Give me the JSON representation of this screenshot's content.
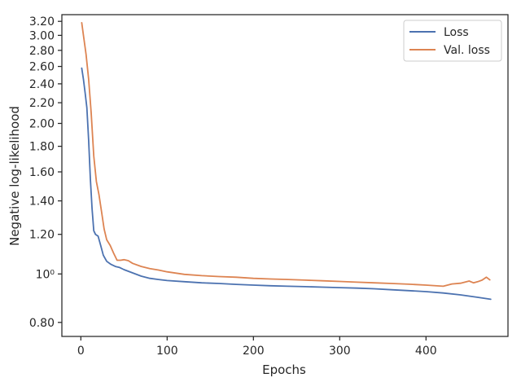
{
  "chart_data": {
    "type": "line",
    "title": "",
    "xlabel": "Epochs",
    "ylabel": "Negative log-likelihood",
    "xlim": [
      -22,
      495
    ],
    "ylim": [
      0.75,
      3.3
    ],
    "y_scale": "log",
    "grid": false,
    "legend_position": "top-right",
    "x_ticks": [
      {
        "value": 0,
        "label": "0"
      },
      {
        "value": 100,
        "label": "100"
      },
      {
        "value": 200,
        "label": "200"
      },
      {
        "value": 300,
        "label": "300"
      },
      {
        "value": 400,
        "label": "400"
      }
    ],
    "y_ticks": [
      {
        "value": 0.8,
        "label": "0.80"
      },
      {
        "value": 1.0,
        "label": "10⁰"
      },
      {
        "value": 1.2,
        "label": "1.20"
      },
      {
        "value": 1.4,
        "label": "1.40"
      },
      {
        "value": 1.6,
        "label": "1.60"
      },
      {
        "value": 1.8,
        "label": "1.80"
      },
      {
        "value": 2.0,
        "label": "2.00"
      },
      {
        "value": 2.2,
        "label": "2.20"
      },
      {
        "value": 2.4,
        "label": "2.40"
      },
      {
        "value": 2.6,
        "label": "2.60"
      },
      {
        "value": 2.8,
        "label": "2.80"
      },
      {
        "value": 3.0,
        "label": "3.00"
      },
      {
        "value": 3.2,
        "label": "3.20"
      }
    ],
    "series": [
      {
        "name": "Loss",
        "color": "#4c72b0",
        "x": [
          1,
          3,
          5,
          7,
          9,
          11,
          13,
          15,
          17,
          20,
          23,
          26,
          30,
          35,
          40,
          45,
          50,
          60,
          70,
          80,
          90,
          100,
          120,
          140,
          160,
          180,
          200,
          220,
          240,
          260,
          280,
          300,
          320,
          340,
          360,
          380,
          400,
          420,
          440,
          460,
          475
        ],
        "y": [
          2.58,
          2.45,
          2.3,
          2.15,
          1.85,
          1.55,
          1.35,
          1.22,
          1.2,
          1.19,
          1.14,
          1.09,
          1.06,
          1.045,
          1.035,
          1.03,
          1.02,
          1.005,
          0.99,
          0.98,
          0.975,
          0.97,
          0.965,
          0.96,
          0.957,
          0.953,
          0.95,
          0.947,
          0.945,
          0.943,
          0.941,
          0.939,
          0.937,
          0.934,
          0.93,
          0.926,
          0.922,
          0.916,
          0.908,
          0.898,
          0.89
        ]
      },
      {
        "name": "Val. loss",
        "color": "#dd8452",
        "x": [
          1,
          3,
          6,
          9,
          12,
          15,
          18,
          21,
          24,
          27,
          30,
          34,
          38,
          42,
          46,
          50,
          55,
          60,
          70,
          80,
          90,
          100,
          120,
          140,
          160,
          180,
          200,
          220,
          240,
          260,
          280,
          300,
          320,
          340,
          360,
          380,
          400,
          420,
          430,
          440,
          450,
          455,
          460,
          465,
          470,
          474
        ],
        "y": [
          3.18,
          3.0,
          2.75,
          2.45,
          2.1,
          1.72,
          1.53,
          1.44,
          1.33,
          1.23,
          1.17,
          1.14,
          1.1,
          1.065,
          1.065,
          1.068,
          1.063,
          1.05,
          1.035,
          1.025,
          1.018,
          1.01,
          0.998,
          0.992,
          0.988,
          0.985,
          0.98,
          0.977,
          0.975,
          0.972,
          0.969,
          0.966,
          0.963,
          0.96,
          0.957,
          0.954,
          0.95,
          0.945,
          0.955,
          0.958,
          0.968,
          0.96,
          0.965,
          0.972,
          0.985,
          0.973
        ]
      }
    ]
  }
}
